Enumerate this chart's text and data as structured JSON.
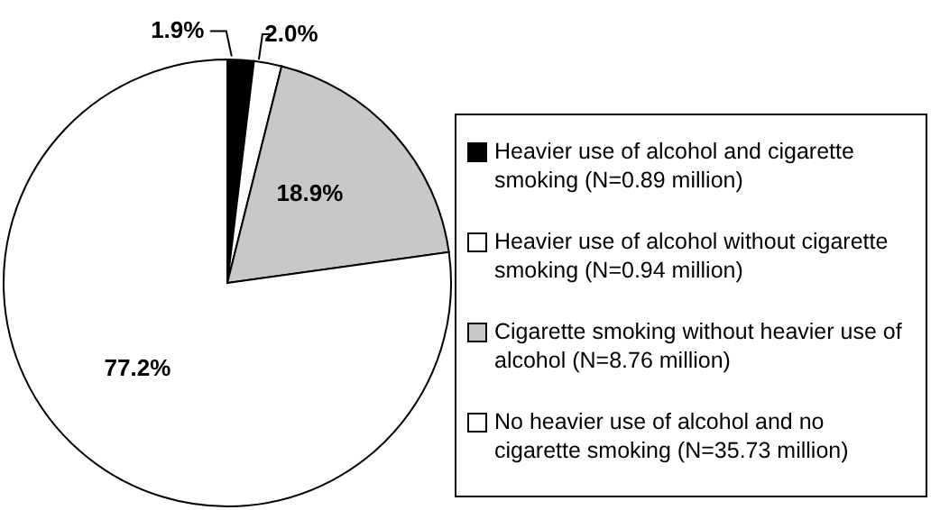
{
  "chart_data": {
    "type": "pie",
    "categories": [
      "Heavier use of alcohol and cigarette smoking (N=0.89 million)",
      "Heavier use of alcohol without cigarette smoking (N=0.94 million)",
      "Cigarette smoking without heavier use of alcohol (N=8.76 million)",
      "No heavier use of alcohol and no cigarette smoking (N=35.73 million)"
    ],
    "values": [
      1.9,
      2.0,
      18.9,
      77.2
    ],
    "colors": [
      "#000000",
      "#ffffff",
      "#c8c8c8",
      "#ffffff"
    ],
    "value_labels": [
      "1.9%",
      "2.0%",
      "18.9%",
      "77.2%"
    ],
    "legend": "right"
  }
}
